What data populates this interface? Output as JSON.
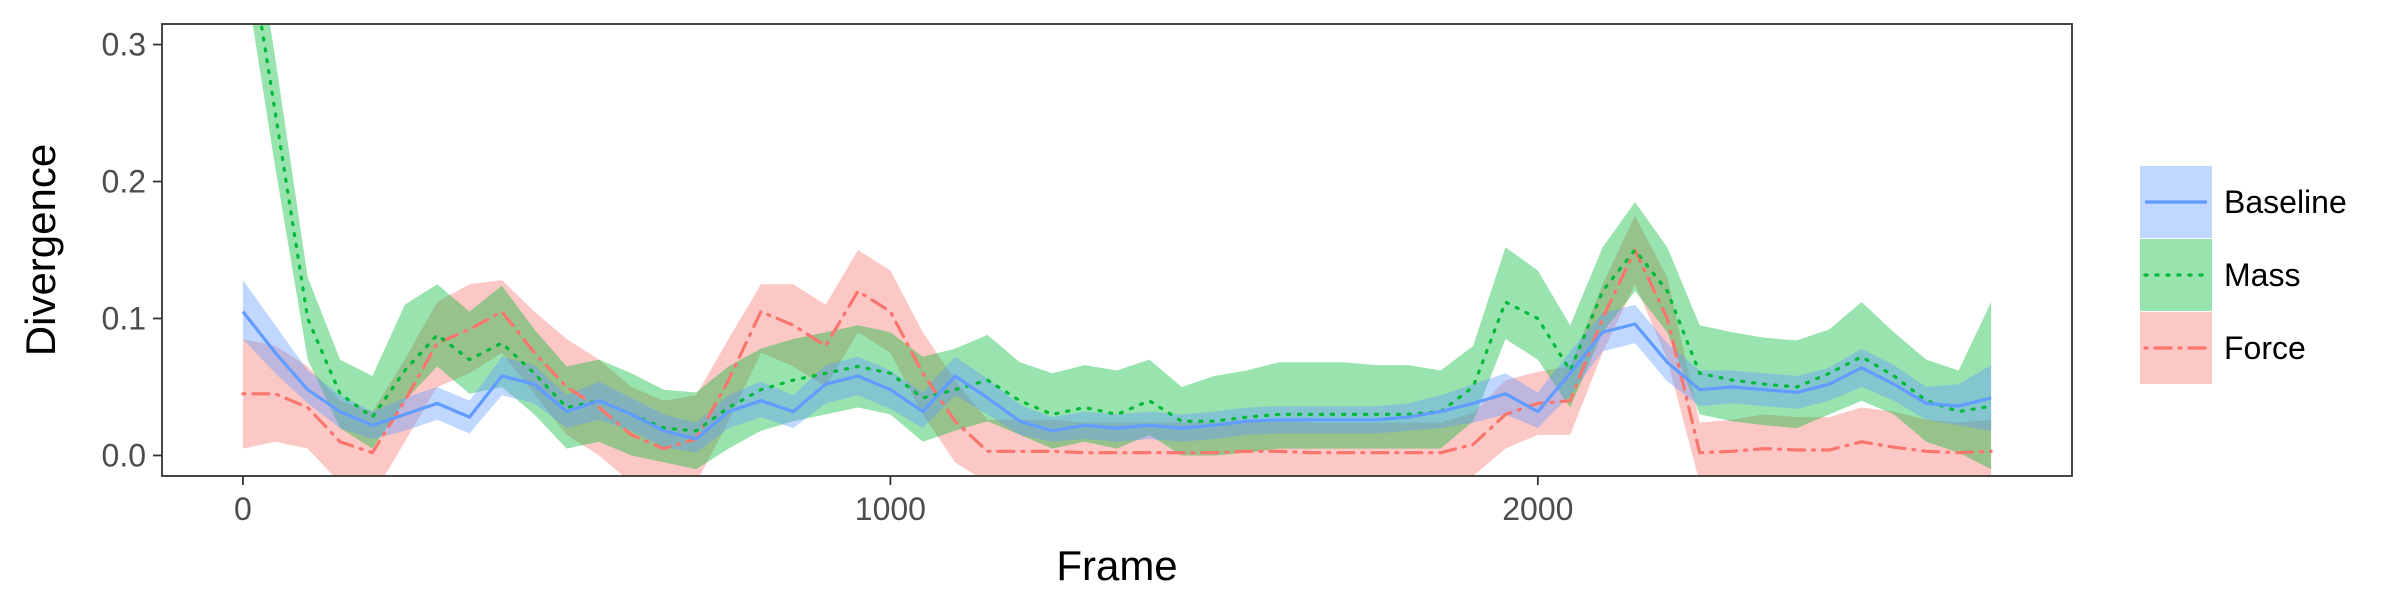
{
  "chart_data": {
    "type": "line",
    "xlabel": "Frame",
    "ylabel": "Divergence",
    "xlim": [
      -125,
      2825
    ],
    "ylim": [
      -0.015,
      0.315
    ],
    "x_ticks": [
      0,
      1000,
      2000
    ],
    "x_tick_labels": [
      "0",
      "1000",
      "2000"
    ],
    "y_ticks": [
      0.0,
      0.1,
      0.2,
      0.3
    ],
    "y_tick_labels": [
      "0.0",
      "0.1",
      "0.2",
      "0.3"
    ],
    "grid": false,
    "legend_position": "right",
    "series": [
      {
        "name": "Baseline",
        "color": "#619CFF",
        "line_style": "solid",
        "x": [
          0,
          50,
          100,
          150,
          200,
          250,
          300,
          350,
          400,
          450,
          500,
          550,
          600,
          650,
          700,
          750,
          800,
          850,
          900,
          950,
          1000,
          1050,
          1100,
          1150,
          1200,
          1250,
          1300,
          1350,
          1400,
          1450,
          1500,
          1550,
          1600,
          1650,
          1700,
          1750,
          1800,
          1850,
          1900,
          1950,
          2000,
          2050,
          2100,
          2150,
          2200,
          2250,
          2300,
          2350,
          2400,
          2450,
          2500,
          2550,
          2600,
          2650,
          2700
        ],
        "y": [
          0.105,
          0.075,
          0.048,
          0.032,
          0.022,
          0.03,
          0.038,
          0.028,
          0.058,
          0.052,
          0.032,
          0.04,
          0.03,
          0.018,
          0.012,
          0.032,
          0.04,
          0.032,
          0.052,
          0.058,
          0.048,
          0.032,
          0.058,
          0.042,
          0.025,
          0.018,
          0.022,
          0.02,
          0.022,
          0.02,
          0.022,
          0.025,
          0.026,
          0.026,
          0.026,
          0.026,
          0.028,
          0.032,
          0.038,
          0.045,
          0.032,
          0.06,
          0.09,
          0.096,
          0.068,
          0.048,
          0.05,
          0.048,
          0.046,
          0.052,
          0.064,
          0.052,
          0.038,
          0.036,
          0.042
        ],
        "lower": [
          0.085,
          0.06,
          0.038,
          0.02,
          0.012,
          0.018,
          0.026,
          0.016,
          0.044,
          0.038,
          0.02,
          0.026,
          0.018,
          0.006,
          0.002,
          0.02,
          0.028,
          0.02,
          0.038,
          0.044,
          0.034,
          0.02,
          0.044,
          0.03,
          0.015,
          0.01,
          0.012,
          0.01,
          0.012,
          0.01,
          0.012,
          0.015,
          0.016,
          0.016,
          0.016,
          0.016,
          0.018,
          0.02,
          0.024,
          0.03,
          0.02,
          0.044,
          0.076,
          0.082,
          0.054,
          0.036,
          0.038,
          0.036,
          0.034,
          0.04,
          0.05,
          0.04,
          0.026,
          0.022,
          0.018
        ],
        "upper": [
          0.128,
          0.095,
          0.062,
          0.044,
          0.032,
          0.042,
          0.05,
          0.04,
          0.072,
          0.066,
          0.044,
          0.054,
          0.042,
          0.03,
          0.024,
          0.044,
          0.054,
          0.044,
          0.066,
          0.072,
          0.062,
          0.046,
          0.072,
          0.056,
          0.037,
          0.028,
          0.032,
          0.03,
          0.032,
          0.03,
          0.032,
          0.035,
          0.036,
          0.036,
          0.036,
          0.036,
          0.038,
          0.044,
          0.052,
          0.06,
          0.046,
          0.076,
          0.104,
          0.11,
          0.082,
          0.062,
          0.062,
          0.06,
          0.058,
          0.064,
          0.078,
          0.066,
          0.05,
          0.052,
          0.066
        ]
      },
      {
        "name": "Mass",
        "color": "#00BA38",
        "line_style": "dotted",
        "x": [
          0,
          50,
          100,
          150,
          200,
          250,
          300,
          350,
          400,
          450,
          500,
          550,
          600,
          650,
          700,
          750,
          800,
          850,
          900,
          950,
          1000,
          1050,
          1100,
          1150,
          1200,
          1250,
          1300,
          1350,
          1400,
          1450,
          1500,
          1550,
          1600,
          1650,
          1700,
          1750,
          1800,
          1850,
          1900,
          1950,
          2000,
          2050,
          2100,
          2150,
          2200,
          2250,
          2300,
          2350,
          2400,
          2450,
          2500,
          2550,
          2600,
          2650,
          2700
        ],
        "y": [
          0.4,
          0.25,
          0.1,
          0.045,
          0.028,
          0.062,
          0.088,
          0.07,
          0.082,
          0.06,
          0.035,
          0.04,
          0.03,
          0.02,
          0.018,
          0.035,
          0.048,
          0.055,
          0.06,
          0.065,
          0.06,
          0.042,
          0.048,
          0.055,
          0.04,
          0.03,
          0.035,
          0.03,
          0.04,
          0.025,
          0.025,
          0.028,
          0.03,
          0.03,
          0.03,
          0.03,
          0.03,
          0.032,
          0.05,
          0.112,
          0.1,
          0.062,
          0.12,
          0.15,
          0.12,
          0.06,
          0.055,
          0.052,
          0.05,
          0.06,
          0.072,
          0.058,
          0.04,
          0.032,
          0.036
        ],
        "lower": [
          0.36,
          0.21,
          0.07,
          0.02,
          0.005,
          0.04,
          0.065,
          0.045,
          0.05,
          0.03,
          0.005,
          0.01,
          0.0,
          -0.005,
          -0.01,
          0.005,
          0.018,
          0.025,
          0.03,
          0.035,
          0.03,
          0.01,
          0.018,
          0.025,
          0.015,
          0.005,
          0.01,
          0.005,
          0.015,
          0.0,
          0.0,
          0.002,
          0.005,
          0.005,
          0.005,
          0.005,
          0.005,
          0.005,
          0.025,
          0.085,
          0.07,
          0.035,
          0.09,
          0.12,
          0.09,
          0.03,
          0.025,
          0.022,
          0.02,
          0.03,
          0.04,
          0.03,
          0.01,
          0.002,
          -0.01
        ],
        "upper": [
          0.44,
          0.29,
          0.13,
          0.07,
          0.058,
          0.11,
          0.125,
          0.105,
          0.124,
          0.092,
          0.065,
          0.07,
          0.06,
          0.048,
          0.046,
          0.065,
          0.078,
          0.085,
          0.09,
          0.095,
          0.09,
          0.072,
          0.078,
          0.088,
          0.068,
          0.06,
          0.066,
          0.062,
          0.07,
          0.05,
          0.058,
          0.062,
          0.068,
          0.068,
          0.068,
          0.066,
          0.066,
          0.062,
          0.08,
          0.152,
          0.135,
          0.095,
          0.152,
          0.185,
          0.152,
          0.095,
          0.09,
          0.086,
          0.084,
          0.092,
          0.112,
          0.09,
          0.07,
          0.062,
          0.112
        ]
      },
      {
        "name": "Force",
        "color": "#F8766D",
        "line_style": "dotdash",
        "x": [
          0,
          50,
          100,
          150,
          200,
          250,
          300,
          350,
          400,
          450,
          500,
          550,
          600,
          650,
          700,
          750,
          800,
          850,
          900,
          950,
          1000,
          1050,
          1100,
          1150,
          1200,
          1250,
          1300,
          1350,
          1400,
          1450,
          1500,
          1550,
          1600,
          1650,
          1700,
          1750,
          1800,
          1850,
          1900,
          1950,
          2000,
          2050,
          2100,
          2150,
          2200,
          2250,
          2300,
          2350,
          2400,
          2450,
          2500,
          2550,
          2600,
          2650,
          2700
        ],
        "y": [
          0.045,
          0.045,
          0.035,
          0.01,
          0.002,
          0.04,
          0.082,
          0.092,
          0.105,
          0.075,
          0.05,
          0.035,
          0.015,
          0.005,
          0.012,
          0.055,
          0.105,
          0.095,
          0.08,
          0.12,
          0.105,
          0.06,
          0.025,
          0.003,
          0.003,
          0.003,
          0.002,
          0.002,
          0.002,
          0.002,
          0.002,
          0.003,
          0.003,
          0.002,
          0.002,
          0.002,
          0.002,
          0.002,
          0.008,
          0.03,
          0.038,
          0.04,
          0.1,
          0.15,
          0.1,
          0.002,
          0.003,
          0.005,
          0.004,
          0.004,
          0.01,
          0.006,
          0.003,
          0.002,
          0.003
        ],
        "lower": [
          0.005,
          0.01,
          0.005,
          -0.02,
          -0.03,
          0.01,
          0.05,
          0.06,
          0.075,
          0.045,
          0.015,
          0.0,
          -0.02,
          -0.03,
          -0.02,
          0.025,
          0.075,
          0.065,
          0.05,
          0.09,
          0.075,
          0.03,
          -0.005,
          -0.02,
          -0.02,
          -0.02,
          -0.02,
          -0.02,
          -0.02,
          -0.02,
          -0.02,
          -0.02,
          -0.02,
          -0.02,
          -0.02,
          -0.02,
          -0.02,
          -0.02,
          -0.015,
          0.005,
          0.015,
          0.015,
          0.075,
          0.125,
          0.07,
          -0.02,
          -0.02,
          -0.02,
          -0.02,
          -0.02,
          -0.015,
          -0.02,
          -0.02,
          -0.02,
          -0.02
        ],
        "upper": [
          0.085,
          0.08,
          0.065,
          0.04,
          0.032,
          0.07,
          0.112,
          0.125,
          0.128,
          0.105,
          0.085,
          0.07,
          0.05,
          0.04,
          0.044,
          0.085,
          0.125,
          0.125,
          0.11,
          0.15,
          0.135,
          0.09,
          0.055,
          0.026,
          0.026,
          0.026,
          0.024,
          0.024,
          0.024,
          0.024,
          0.024,
          0.026,
          0.026,
          0.024,
          0.024,
          0.024,
          0.024,
          0.024,
          0.031,
          0.055,
          0.061,
          0.065,
          0.125,
          0.175,
          0.13,
          0.024,
          0.026,
          0.03,
          0.028,
          0.028,
          0.035,
          0.032,
          0.026,
          0.024,
          0.026
        ]
      }
    ]
  }
}
